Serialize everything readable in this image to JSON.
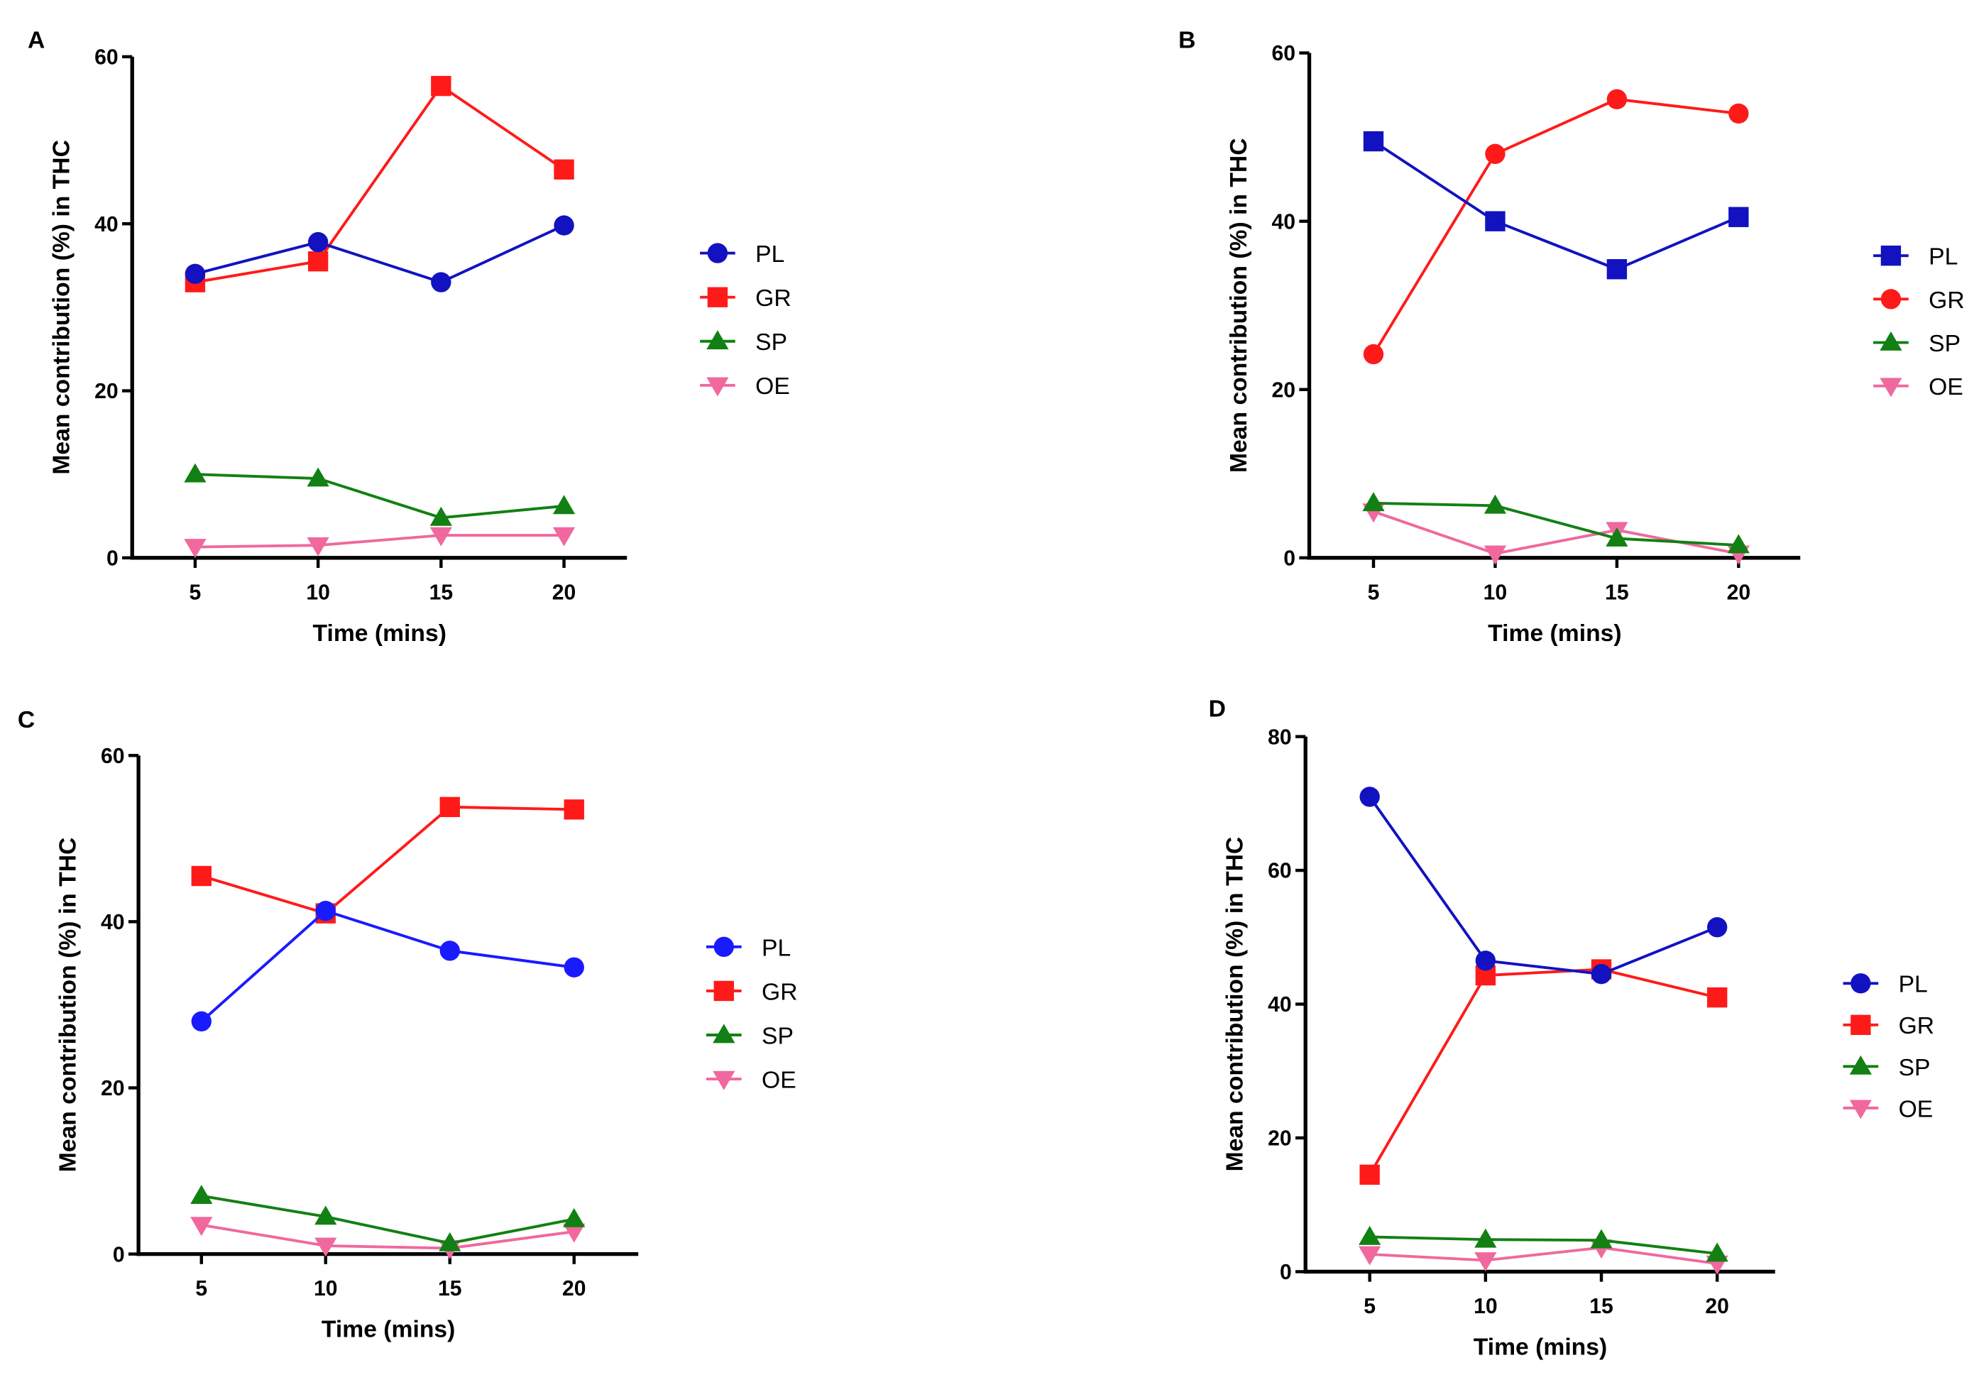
{
  "chart_data": [
    {
      "panel": "A",
      "type": "line",
      "xlabel": "Time (mins)",
      "ylabel": "Mean contribution (%) in THC",
      "x": [
        5,
        10,
        15,
        20
      ],
      "ylim": [
        0,
        60
      ],
      "yticks": [
        0,
        20,
        40,
        60
      ],
      "legend_position": "right",
      "series": [
        {
          "name": "PL",
          "color": "#1212c0",
          "marker": "circle",
          "values": [
            34.0,
            37.8,
            33.0,
            39.8
          ]
        },
        {
          "name": "GR",
          "color": "#ff1a1a",
          "marker": "square",
          "values": [
            33.0,
            35.5,
            56.5,
            46.5
          ]
        },
        {
          "name": "SP",
          "color": "#128012",
          "marker": "triangle-up",
          "values": [
            10.0,
            9.5,
            4.8,
            6.2
          ]
        },
        {
          "name": "OE",
          "color": "#f0689e",
          "marker": "triangle-down",
          "values": [
            1.3,
            1.5,
            2.7,
            2.7
          ]
        }
      ]
    },
    {
      "panel": "B",
      "type": "line",
      "xlabel": "Time (mins)",
      "ylabel": "Mean contribution (%) in THC",
      "x": [
        5,
        10,
        15,
        20
      ],
      "ylim": [
        0,
        60
      ],
      "yticks": [
        0,
        20,
        40,
        60
      ],
      "legend_position": "right",
      "series": [
        {
          "name": "PL",
          "color": "#1212c0",
          "marker": "square",
          "values": [
            49.5,
            40.0,
            34.3,
            40.5
          ]
        },
        {
          "name": "GR",
          "color": "#ff1a1a",
          "marker": "circle",
          "values": [
            24.2,
            48.0,
            54.5,
            52.8
          ]
        },
        {
          "name": "SP",
          "color": "#128012",
          "marker": "triangle-up",
          "values": [
            6.5,
            6.2,
            2.3,
            1.5
          ]
        },
        {
          "name": "OE",
          "color": "#f0689e",
          "marker": "triangle-down",
          "values": [
            5.5,
            0.5,
            3.3,
            0.5
          ]
        }
      ]
    },
    {
      "panel": "C",
      "type": "line",
      "xlabel": "Time (mins)",
      "ylabel": "Mean contribution (%) in THC",
      "x": [
        5,
        10,
        15,
        20
      ],
      "ylim": [
        0,
        60
      ],
      "yticks": [
        0,
        20,
        40,
        60
      ],
      "legend_position": "right",
      "series": [
        {
          "name": "PL",
          "color": "#1a1aff",
          "marker": "circle",
          "values": [
            28.0,
            41.3,
            36.5,
            34.5
          ]
        },
        {
          "name": "GR",
          "color": "#ff1a1a",
          "marker": "square",
          "values": [
            45.5,
            41.0,
            53.8,
            53.5
          ]
        },
        {
          "name": "SP",
          "color": "#128012",
          "marker": "triangle-up",
          "values": [
            7.0,
            4.5,
            1.3,
            4.2
          ]
        },
        {
          "name": "OE",
          "color": "#f0689e",
          "marker": "triangle-down",
          "values": [
            3.5,
            1.0,
            0.7,
            2.7
          ]
        }
      ]
    },
    {
      "panel": "D",
      "type": "line",
      "xlabel": "Time (mins)",
      "ylabel": "Mean contribution (%) in THC",
      "x": [
        5,
        10,
        15,
        20
      ],
      "ylim": [
        0,
        80
      ],
      "yticks": [
        0,
        20,
        40,
        60,
        80
      ],
      "legend_position": "right",
      "series": [
        {
          "name": "PL",
          "color": "#1212c0",
          "marker": "circle",
          "values": [
            71.0,
            46.5,
            44.5,
            51.5
          ]
        },
        {
          "name": "GR",
          "color": "#ff1a1a",
          "marker": "square",
          "values": [
            14.5,
            44.3,
            45.2,
            41.0
          ]
        },
        {
          "name": "SP",
          "color": "#128012",
          "marker": "triangle-up",
          "values": [
            5.2,
            4.8,
            4.7,
            2.7
          ]
        },
        {
          "name": "OE",
          "color": "#f0689e",
          "marker": "triangle-down",
          "values": [
            2.6,
            1.7,
            3.6,
            1.2
          ]
        }
      ]
    }
  ]
}
